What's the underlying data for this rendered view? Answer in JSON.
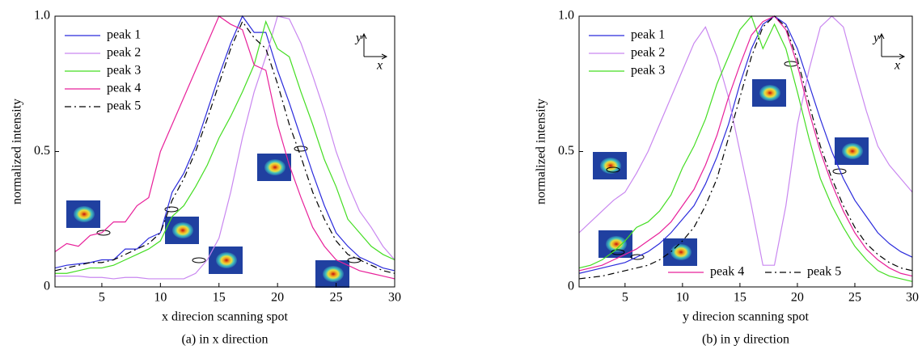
{
  "chart_data": [
    {
      "type": "line",
      "caption": "(a) in x direction",
      "x_label": "x direcion scanning spot",
      "y_label": "normalized intensity",
      "axis_indicator": {
        "y": "y",
        "x": "x"
      },
      "x": [
        1,
        2,
        3,
        4,
        5,
        6,
        7,
        8,
        9,
        10,
        11,
        12,
        13,
        14,
        15,
        16,
        17,
        18,
        19,
        20,
        21,
        22,
        23,
        24,
        25,
        26,
        27,
        28,
        29,
        30
      ],
      "xlim": [
        1,
        30
      ],
      "xticks": [
        5,
        10,
        15,
        20,
        25,
        30
      ],
      "ylim": [
        0,
        1
      ],
      "yticks": [
        0,
        0.5,
        {
          "value": 1,
          "label": "1.0"
        }
      ],
      "legend": "upper left",
      "series": [
        {
          "name": "peak 1",
          "color": "#2b2bdc",
          "linestyle": "solid",
          "values": [
            0.07,
            0.08,
            0.085,
            0.09,
            0.1,
            0.1,
            0.14,
            0.14,
            0.18,
            0.2,
            0.35,
            0.42,
            0.52,
            0.65,
            0.78,
            0.9,
            1.0,
            0.94,
            0.94,
            0.8,
            0.68,
            0.55,
            0.42,
            0.3,
            0.2,
            0.15,
            0.11,
            0.09,
            0.07,
            0.06
          ]
        },
        {
          "name": "peak 2",
          "color": "#c987f0",
          "linestyle": "solid",
          "values": [
            0.04,
            0.04,
            0.04,
            0.035,
            0.035,
            0.03,
            0.035,
            0.035,
            0.03,
            0.03,
            0.03,
            0.03,
            0.05,
            0.1,
            0.18,
            0.35,
            0.55,
            0.72,
            0.85,
            1.0,
            0.99,
            0.9,
            0.78,
            0.65,
            0.5,
            0.38,
            0.28,
            0.22,
            0.15,
            0.1
          ]
        },
        {
          "name": "peak 3",
          "color": "#44dd22",
          "linestyle": "solid",
          "values": [
            0.05,
            0.05,
            0.06,
            0.07,
            0.07,
            0.08,
            0.1,
            0.12,
            0.14,
            0.17,
            0.26,
            0.3,
            0.37,
            0.45,
            0.55,
            0.63,
            0.72,
            0.82,
            0.98,
            0.88,
            0.85,
            0.72,
            0.6,
            0.47,
            0.37,
            0.25,
            0.2,
            0.15,
            0.12,
            0.1
          ]
        },
        {
          "name": "peak 4",
          "color": "#e8209a",
          "linestyle": "solid",
          "values": [
            0.13,
            0.16,
            0.15,
            0.19,
            0.2,
            0.24,
            0.24,
            0.3,
            0.33,
            0.5,
            0.6,
            0.7,
            0.8,
            0.9,
            1.0,
            0.97,
            0.95,
            0.82,
            0.8,
            0.6,
            0.45,
            0.33,
            0.22,
            0.15,
            0.1,
            0.08,
            0.06,
            0.05,
            0.04,
            0.03
          ]
        },
        {
          "name": "peak 5",
          "color": "#000000",
          "linestyle": "dashdot",
          "values": [
            0.06,
            0.07,
            0.08,
            0.09,
            0.09,
            0.1,
            0.12,
            0.14,
            0.16,
            0.2,
            0.32,
            0.4,
            0.5,
            0.62,
            0.75,
            0.88,
            0.98,
            0.92,
            0.88,
            0.75,
            0.6,
            0.48,
            0.35,
            0.25,
            0.17,
            0.12,
            0.1,
            0.08,
            0.06,
            0.05
          ]
        }
      ]
    },
    {
      "type": "line",
      "caption": "(b) in y direction",
      "x_label": "y direcion scanning spot",
      "y_label": "normalized intensity",
      "axis_indicator": {
        "y": "y",
        "x": "x"
      },
      "x": [
        1,
        2,
        3,
        4,
        5,
        6,
        7,
        8,
        9,
        10,
        11,
        12,
        13,
        14,
        15,
        16,
        17,
        18,
        19,
        20,
        21,
        22,
        23,
        24,
        25,
        26,
        27,
        28,
        29,
        30
      ],
      "xlim": [
        1,
        30
      ],
      "xticks": [
        5,
        10,
        15,
        20,
        25,
        30
      ],
      "ylim": [
        0,
        1
      ],
      "yticks": [
        0,
        0.5,
        {
          "value": 1,
          "label": "1.0"
        }
      ],
      "legend": "upper left",
      "series": [
        {
          "name": "peak 1",
          "color": "#2b2bdc",
          "linestyle": "solid",
          "values": [
            0.05,
            0.06,
            0.07,
            0.08,
            0.09,
            0.11,
            0.13,
            0.16,
            0.2,
            0.25,
            0.3,
            0.38,
            0.48,
            0.6,
            0.75,
            0.88,
            0.97,
            1.0,
            0.97,
            0.88,
            0.75,
            0.62,
            0.5,
            0.4,
            0.32,
            0.26,
            0.2,
            0.16,
            0.13,
            0.11
          ]
        },
        {
          "name": "peak 2",
          "color": "#c987f0",
          "linestyle": "solid",
          "values": [
            0.2,
            0.24,
            0.28,
            0.32,
            0.35,
            0.42,
            0.5,
            0.6,
            0.7,
            0.8,
            0.9,
            0.96,
            0.85,
            0.7,
            0.5,
            0.3,
            0.08,
            0.08,
            0.3,
            0.6,
            0.8,
            0.96,
            1.0,
            0.96,
            0.8,
            0.65,
            0.52,
            0.45,
            0.4,
            0.35
          ]
        },
        {
          "name": "peak 3",
          "color": "#44dd22",
          "linestyle": "solid",
          "values": [
            0.07,
            0.08,
            0.1,
            0.13,
            0.17,
            0.22,
            0.24,
            0.28,
            0.34,
            0.44,
            0.52,
            0.62,
            0.75,
            0.85,
            0.95,
            1.0,
            0.88,
            0.97,
            0.88,
            0.72,
            0.55,
            0.4,
            0.3,
            0.22,
            0.15,
            0.1,
            0.06,
            0.04,
            0.03,
            0.02
          ]
        },
        {
          "name": "peak 4",
          "color": "#e8209a",
          "linestyle": "solid",
          "values": [
            0.06,
            0.07,
            0.08,
            0.1,
            0.12,
            0.14,
            0.17,
            0.2,
            0.24,
            0.3,
            0.36,
            0.45,
            0.56,
            0.7,
            0.82,
            0.93,
            0.98,
            1.0,
            0.95,
            0.82,
            0.65,
            0.5,
            0.38,
            0.28,
            0.2,
            0.14,
            0.1,
            0.07,
            0.05,
            0.04
          ]
        },
        {
          "name": "peak 5",
          "color": "#000000",
          "linestyle": "dashdot",
          "values": [
            0.03,
            0.035,
            0.04,
            0.05,
            0.06,
            0.07,
            0.08,
            0.1,
            0.13,
            0.17,
            0.22,
            0.3,
            0.4,
            0.55,
            0.7,
            0.85,
            0.96,
            1.0,
            0.96,
            0.84,
            0.68,
            0.52,
            0.4,
            0.3,
            0.22,
            0.16,
            0.12,
            0.09,
            0.07,
            0.06
          ]
        }
      ]
    }
  ]
}
